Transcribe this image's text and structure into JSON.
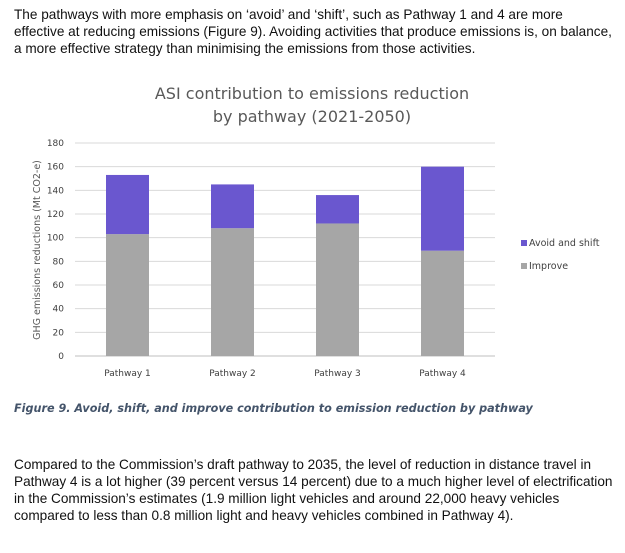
{
  "intro_text": "The pathways with more emphasis on ‘avoid’ and ‘shift’, such as Pathway 1 and 4 are more effective at reducing emissions (Figure 9). Avoiding activities that produce emissions is, on balance, a more effective strategy than minimising the emissions from those activities.",
  "chart_data": {
    "type": "bar",
    "stacked": true,
    "title_line1": "ASI contribution to emissions reduction",
    "title_line2": "by pathway (2021-2050)",
    "ylabel": "GHG emissions reductions (Mt CO2-e)",
    "xlabel": "",
    "ylim": [
      0,
      180
    ],
    "yticks": [
      0,
      20,
      40,
      60,
      80,
      100,
      120,
      140,
      160,
      180
    ],
    "grid": true,
    "legend_position": "right",
    "categories": [
      "Pathway 1",
      "Pathway 2",
      "Pathway 3",
      "Pathway 4"
    ],
    "series": [
      {
        "name": "Improve",
        "color": "#a6a6a6",
        "values": [
          103,
          108,
          112,
          89
        ]
      },
      {
        "name": "Avoid and shift",
        "color": "#6a57cf",
        "values": [
          50,
          37,
          24,
          71
        ]
      }
    ],
    "legend_order": [
      "Avoid and shift",
      "Improve"
    ]
  },
  "caption": "Figure 9. Avoid, shift, and improve contribution to emission reduction by pathway",
  "body_text": "Compared to the Commission’s draft pathway to 2035, the level of reduction in distance travel in Pathway 4 is a lot higher (39 percent versus 14 percent) due to a much higher level of electrification in the Commission’s estimates (1.9 million light vehicles and around 22,000 heavy vehicles compared to less than 0.8 million light and heavy vehicles combined in Pathway 4)."
}
